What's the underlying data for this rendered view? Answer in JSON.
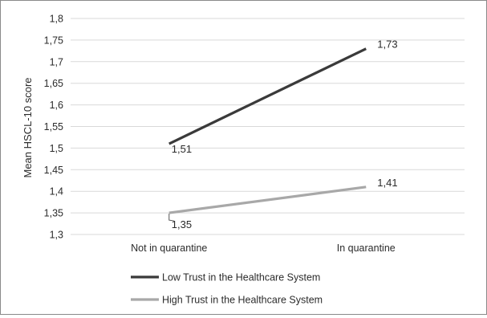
{
  "chart_data": {
    "type": "line",
    "categories": [
      "Not in quarantine",
      "In quarantine"
    ],
    "ylabel": "Mean HSCL-10 score",
    "ylim": [
      1.3,
      1.8
    ],
    "yticks": [
      "1,3",
      "1,35",
      "1,4",
      "1,45",
      "1,5",
      "1,55",
      "1,6",
      "1,65",
      "1,7",
      "1,75",
      "1,8"
    ],
    "grid": true,
    "legend_position": "bottom-left",
    "series": [
      {
        "name": "Low Trust in the Healthcare System",
        "values": [
          1.51,
          1.73
        ],
        "labels": [
          "1,51",
          "1,73"
        ],
        "color": "#3a3a3a"
      },
      {
        "name": "High Trust in the Healthcare System",
        "values": [
          1.35,
          1.41
        ],
        "labels": [
          "1,35",
          "1,41"
        ],
        "color": "#a8a8a8"
      }
    ]
  }
}
